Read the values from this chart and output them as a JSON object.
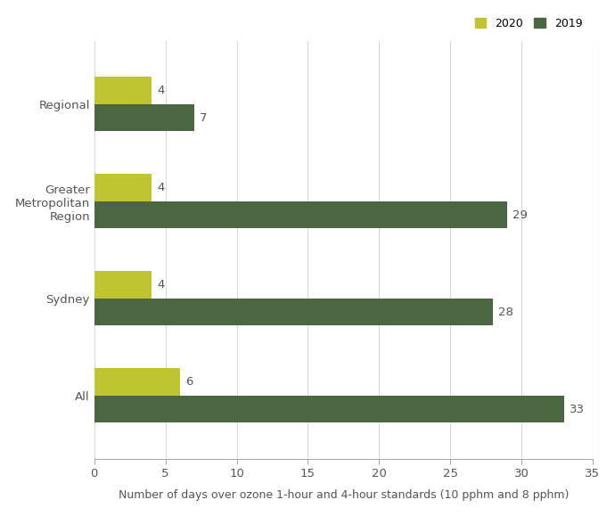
{
  "categories": [
    "All",
    "Sydney",
    "Greater\nMetropolitan\nRegion",
    "Regional"
  ],
  "values_2020": [
    6,
    4,
    4,
    4
  ],
  "values_2019": [
    33,
    28,
    29,
    7
  ],
  "color_2020": "#bfc431",
  "color_2019": "#4a6741",
  "xlabel": "Number of days over ozone 1-hour and 4-hour standards (10 pphm and 8 pphm)",
  "xlim": [
    0,
    35
  ],
  "xticks": [
    0,
    5,
    10,
    15,
    20,
    25,
    30,
    35
  ],
  "legend_2020": "2020",
  "legend_2019": "2019",
  "bar_height": 0.28,
  "label_fontsize": 9.5,
  "tick_fontsize": 9.5,
  "xlabel_fontsize": 9,
  "background_color": "#ffffff"
}
